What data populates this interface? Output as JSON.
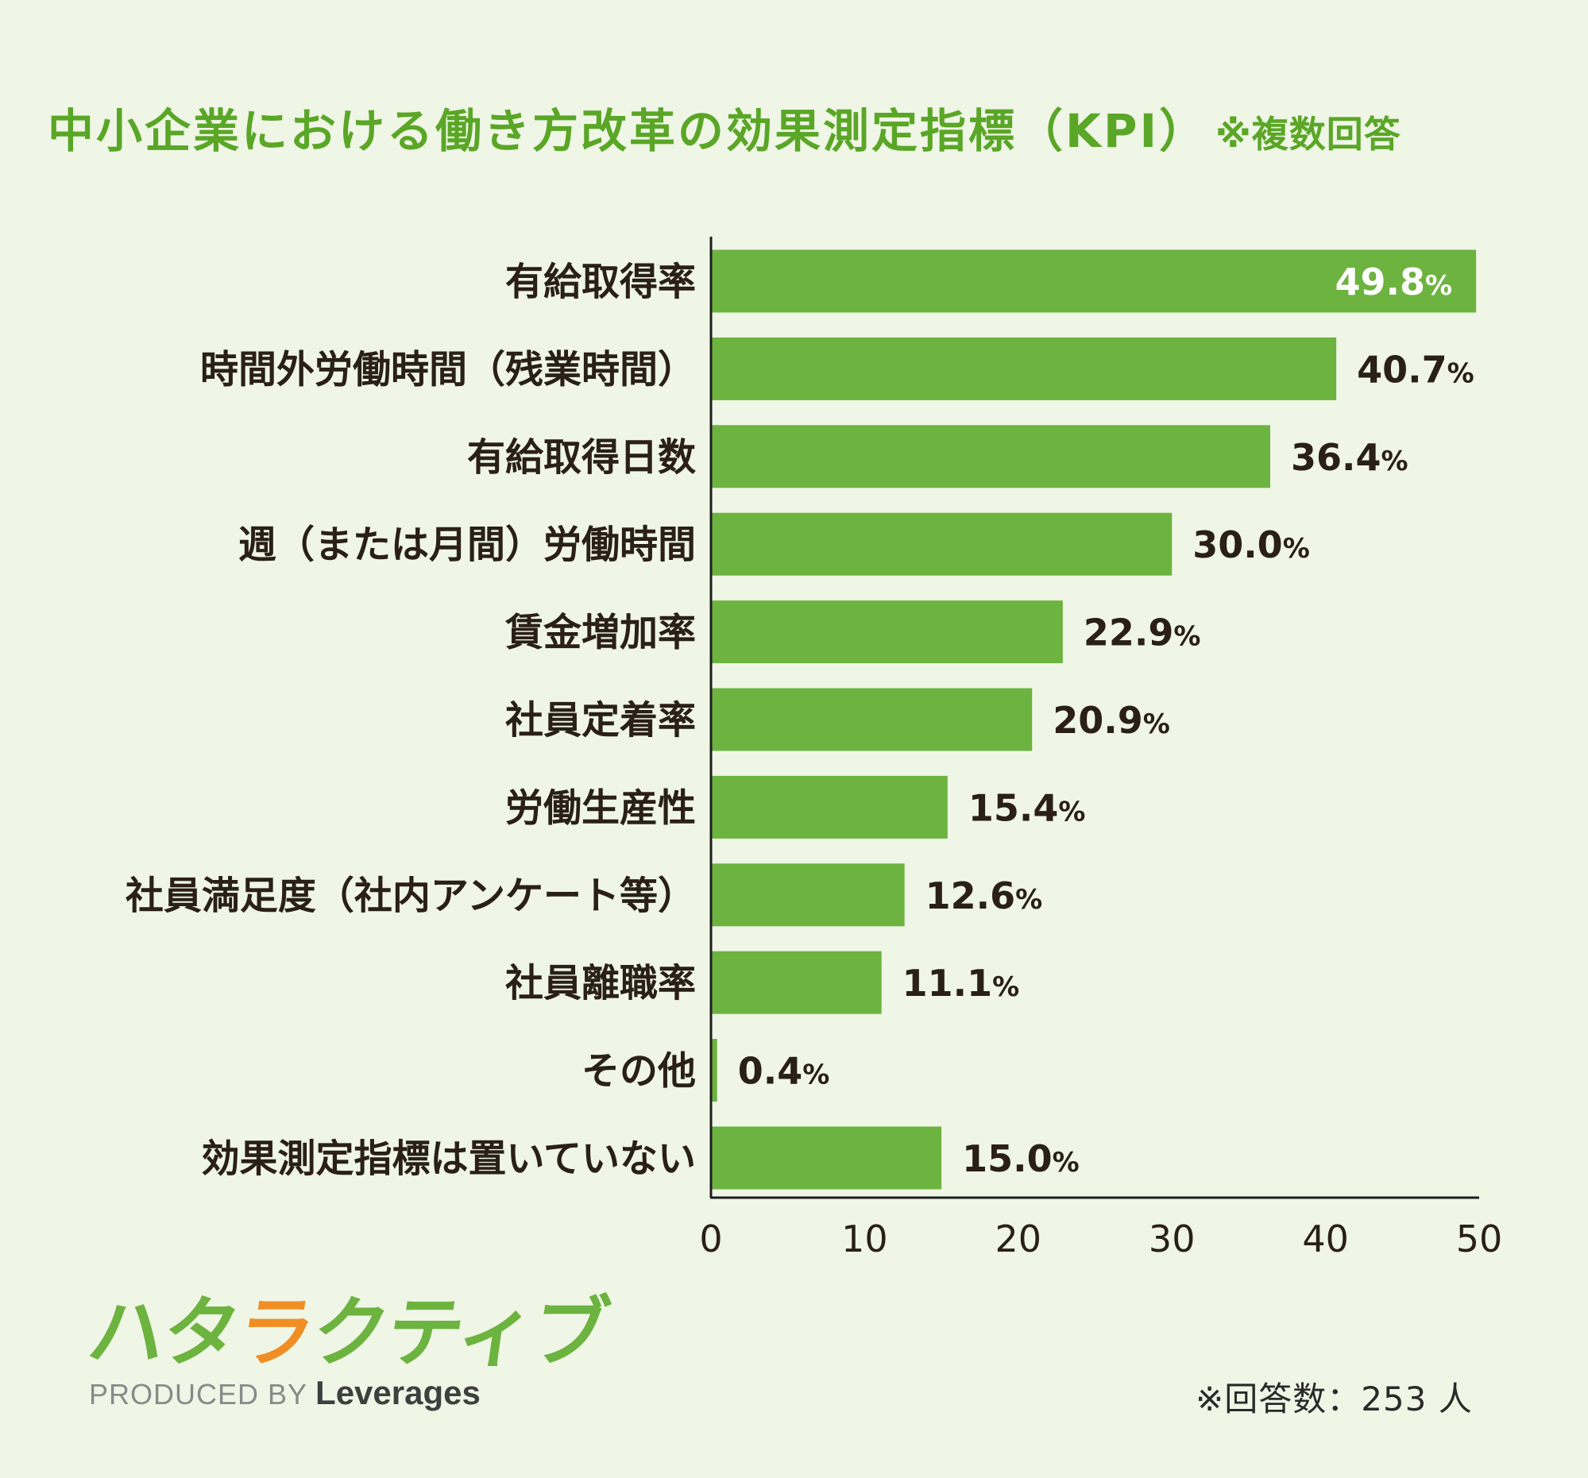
{
  "title": "中小企業における働き方改革の効果測定指標（KPI）",
  "title_note": "※複数回答",
  "colors": {
    "bar": "#6db33f",
    "title": "#5aa626",
    "background": "#eff6e6",
    "label_text": "#2a2015",
    "inside_label_text": "#ffffff",
    "logo_accent": "#f08e24"
  },
  "chart_data": {
    "type": "bar",
    "orientation": "horizontal",
    "categories": [
      "有給取得率",
      "時間外労働時間（残業時間）",
      "有給取得日数",
      "週（または月間）労働時間",
      "賃金増加率",
      "社員定着率",
      "労働生産性",
      "社員満足度（社内アンケート等）",
      "社員離職率",
      "その他",
      "効果測定指標は置いていない"
    ],
    "values": [
      49.8,
      40.7,
      36.4,
      30.0,
      22.9,
      20.9,
      15.4,
      12.6,
      11.1,
      0.4,
      15.0
    ],
    "value_labels": [
      "49.8",
      "40.7",
      "36.4",
      "30.0",
      "22.9",
      "20.9",
      "15.4",
      "12.6",
      "11.1",
      "0.4",
      "15.0"
    ],
    "value_unit": "%",
    "xlim": [
      0,
      50
    ],
    "xticks": [
      "0",
      "10",
      "20",
      "30",
      "40",
      "50"
    ],
    "xlabel": "",
    "ylabel": "",
    "grid": false,
    "legend": "none"
  },
  "logo": {
    "wordmark": "ハタラクティブ",
    "produced_by": "PRODUCED BY",
    "brand": "Leverages"
  },
  "note": "※回答数：253 人"
}
